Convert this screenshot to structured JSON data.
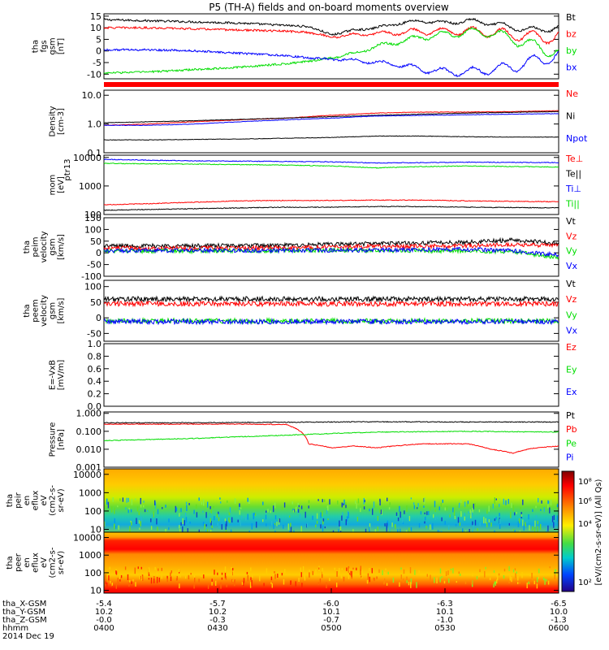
{
  "title": "P5 (TH-A) fields and on-board moments overview",
  "colors": {
    "black": "#000000",
    "red": "#ff0000",
    "green": "#00dd00",
    "blue": "#0000ff"
  },
  "chart_data": [
    {
      "type": "line",
      "panel": "fgs",
      "ylabel_lines": [
        "tha",
        "fgs",
        "gsm",
        "[nT]"
      ],
      "ylim": [
        -12,
        16
      ],
      "yticks": [
        "15",
        "10",
        "5",
        "0",
        "-5",
        "-10"
      ],
      "ytick_values": [
        15,
        10,
        5,
        0,
        -5,
        -10
      ],
      "series": [
        {
          "name": "Bt",
          "color": "#000000",
          "x": [
            0,
            0.1,
            0.2,
            0.3,
            0.4,
            0.45,
            0.5,
            0.55,
            0.6,
            0.65,
            0.7,
            0.75,
            0.8,
            0.85,
            0.9,
            0.95,
            1.0
          ],
          "values": [
            13.5,
            13,
            12.5,
            12,
            11,
            10.5,
            7,
            9,
            10,
            12,
            13,
            12,
            13,
            12,
            10,
            9,
            10
          ]
        },
        {
          "name": "bz",
          "color": "#ff0000",
          "x": [
            0,
            0.1,
            0.2,
            0.3,
            0.4,
            0.45,
            0.5,
            0.55,
            0.6,
            0.65,
            0.7,
            0.75,
            0.8,
            0.85,
            0.9,
            0.95,
            1.0
          ],
          "values": [
            10,
            10,
            9.5,
            9,
            8.5,
            8,
            6,
            7,
            7.5,
            8,
            8.5,
            8.5,
            8.5,
            8,
            7,
            6,
            6
          ]
        },
        {
          "name": "by",
          "color": "#00dd00",
          "x": [
            0,
            0.1,
            0.2,
            0.3,
            0.4,
            0.45,
            0.5,
            0.55,
            0.6,
            0.65,
            0.7,
            0.75,
            0.8,
            0.85,
            0.9,
            0.95,
            1.0
          ],
          "values": [
            -9.5,
            -9,
            -8,
            -7,
            -5.5,
            -4.5,
            -3,
            -1,
            2,
            4,
            6,
            7,
            8,
            8,
            5,
            2,
            -1
          ]
        },
        {
          "name": "bx",
          "color": "#0000ff",
          "x": [
            0,
            0.1,
            0.2,
            0.3,
            0.4,
            0.45,
            0.5,
            0.55,
            0.6,
            0.65,
            0.7,
            0.75,
            0.8,
            0.85,
            0.9,
            0.95,
            1.0
          ],
          "values": [
            0.5,
            0.5,
            0,
            -1,
            -2,
            -3,
            -3.5,
            -4,
            -5,
            -6,
            -8,
            -9,
            -9,
            -8,
            -7,
            -4,
            -2
          ]
        }
      ]
    },
    {
      "type": "line",
      "panel": "density",
      "yscale": "log",
      "ylabel_lines": [
        "Density",
        "[cm-3]"
      ],
      "ylim": [
        0.1,
        15
      ],
      "yticks": [
        "10.0",
        "1.0",
        "0.1"
      ],
      "ytick_values": [
        10,
        1,
        0.1
      ],
      "series": [
        {
          "name": "Ne",
          "color": "#ff0000",
          "x": [
            0,
            0.1,
            0.2,
            0.3,
            0.4,
            0.5,
            0.6,
            0.7,
            0.8,
            0.9,
            1.0
          ],
          "values": [
            0.9,
            1.0,
            1.2,
            1.4,
            1.6,
            2.0,
            2.4,
            2.6,
            2.6,
            2.7,
            2.9
          ]
        },
        {
          "name": "Ni",
          "color": "#000000",
          "x": [
            0,
            0.2,
            0.4,
            0.6,
            0.8,
            1.0
          ],
          "values": [
            1.1,
            1.3,
            1.6,
            2.0,
            2.4,
            2.7
          ]
        },
        {
          "name": "Npot",
          "color": "#0000ff",
          "x": [
            0,
            0.1,
            0.2,
            0.3,
            0.4,
            0.5,
            0.6,
            0.7,
            0.8,
            0.9,
            1.0
          ],
          "values": [
            0.9,
            0.9,
            1.0,
            1.2,
            1.4,
            1.6,
            1.9,
            2.0,
            2.1,
            2.2,
            2.3
          ]
        },
        {
          "name": "",
          "color": "#000000",
          "x": [
            0,
            0.1,
            0.2,
            0.3,
            0.4,
            0.5,
            0.6,
            0.7,
            0.8,
            0.9,
            1.0
          ],
          "values": [
            0.28,
            0.28,
            0.29,
            0.3,
            0.32,
            0.34,
            0.38,
            0.38,
            0.36,
            0.35,
            0.35
          ]
        }
      ]
    },
    {
      "type": "line",
      "panel": "temperature",
      "yscale": "log",
      "ylabel_lines": [
        "mom",
        "[eV]"
      ],
      "ylabel_extra": "ptr13",
      "ylim": [
        100,
        12000
      ],
      "yticks": [
        "10000",
        "1000",
        "100"
      ],
      "ytick_values": [
        10000,
        1000,
        100
      ],
      "series": [
        {
          "name": "Te⊥",
          "color": "#ff0000",
          "x": [
            0,
            0.1,
            0.2,
            0.3,
            0.4,
            0.5,
            0.6,
            0.7,
            0.8,
            0.9,
            1.0
          ],
          "values": [
            220,
            240,
            270,
            300,
            310,
            310,
            320,
            320,
            300,
            290,
            280
          ]
        },
        {
          "name": "Te||",
          "color": "#000000",
          "x": [
            0,
            0.1,
            0.2,
            0.3,
            0.4,
            0.5,
            0.6,
            0.7,
            0.8,
            0.9,
            1.0
          ],
          "values": [
            140,
            150,
            160,
            170,
            180,
            180,
            190,
            190,
            180,
            175,
            170
          ]
        },
        {
          "name": "Ti⊥",
          "color": "#0000ff",
          "x": [
            0,
            0.1,
            0.2,
            0.3,
            0.4,
            0.5,
            0.6,
            0.7,
            0.8,
            0.9,
            1.0
          ],
          "values": [
            8600,
            8000,
            7600,
            7400,
            7200,
            7000,
            6400,
            6600,
            6800,
            6700,
            6600
          ]
        },
        {
          "name": "Ti||",
          "color": "#00dd00",
          "x": [
            0,
            0.1,
            0.2,
            0.3,
            0.4,
            0.5,
            0.6,
            0.7,
            0.8,
            0.9,
            1.0
          ],
          "values": [
            6200,
            6000,
            5800,
            5600,
            5400,
            5000,
            4300,
            4800,
            5000,
            4800,
            4600
          ]
        }
      ]
    },
    {
      "type": "line",
      "panel": "peim-velocity",
      "ylabel_lines": [
        "tha",
        "peim",
        "velocity",
        "gsm",
        "[km/s]"
      ],
      "ylim": [
        -100,
        150
      ],
      "yticks": [
        "150",
        "100",
        "50",
        "0",
        "-50",
        "-100"
      ],
      "ytick_values": [
        150,
        100,
        50,
        0,
        -50,
        -100
      ],
      "series": [
        {
          "name": "Vt",
          "color": "#000000",
          "x": [
            0,
            0.2,
            0.4,
            0.6,
            0.8,
            0.9,
            1.0
          ],
          "values": [
            30,
            30,
            32,
            40,
            45,
            55,
            40
          ]
        },
        {
          "name": "Vz",
          "color": "#ff0000",
          "x": [
            0,
            0.2,
            0.4,
            0.6,
            0.8,
            0.9,
            1.0
          ],
          "values": [
            20,
            20,
            22,
            28,
            30,
            35,
            30
          ]
        },
        {
          "name": "Vy",
          "color": "#00dd00",
          "x": [
            0,
            0.2,
            0.4,
            0.6,
            0.8,
            0.9,
            1.0
          ],
          "values": [
            8,
            8,
            10,
            10,
            8,
            5,
            -20
          ]
        },
        {
          "name": "Vx",
          "color": "#0000ff",
          "x": [
            0,
            0.2,
            0.4,
            0.6,
            0.8,
            0.9,
            1.0
          ],
          "values": [
            10,
            10,
            10,
            12,
            15,
            10,
            -10
          ]
        }
      ]
    },
    {
      "type": "line",
      "panel": "peem-velocity",
      "ylabel_lines": [
        "tha",
        "peem",
        "velocity",
        "gsm",
        "[km/s]"
      ],
      "ylim": [
        -75,
        120
      ],
      "yticks": [
        "100",
        "50",
        "0",
        "-50"
      ],
      "ytick_values": [
        100,
        50,
        0,
        -50
      ],
      "series": [
        {
          "name": "Vt",
          "color": "#000000",
          "x": [
            0,
            0.5,
            1.0
          ],
          "values": [
            60,
            60,
            60
          ]
        },
        {
          "name": "Vz",
          "color": "#ff0000",
          "x": [
            0,
            0.5,
            1.0
          ],
          "values": [
            45,
            45,
            45
          ]
        },
        {
          "name": "Vy",
          "color": "#00dd00",
          "x": [
            0,
            0.5,
            1.0
          ],
          "values": [
            -10,
            -10,
            -10
          ]
        },
        {
          "name": "Vx",
          "color": "#0000ff",
          "x": [
            0,
            0.5,
            1.0
          ],
          "values": [
            -12,
            -12,
            -12
          ]
        }
      ]
    },
    {
      "type": "line",
      "panel": "efield",
      "ylabel_lines": [
        "E=-VxB",
        "[mV/m]"
      ],
      "ylim": [
        0,
        1
      ],
      "yticks": [
        "1.0",
        "0.8",
        "0.6",
        "0.4",
        "0.2",
        "0.0"
      ],
      "ytick_values": [
        1,
        0.8,
        0.6,
        0.4,
        0.2,
        0
      ],
      "series": [
        {
          "name": "Ez",
          "color": "#ff0000",
          "x": [],
          "values": []
        },
        {
          "name": "Ey",
          "color": "#00dd00",
          "x": [],
          "values": []
        },
        {
          "name": "Ex",
          "color": "#0000ff",
          "x": [],
          "values": []
        }
      ]
    },
    {
      "type": "line",
      "panel": "pressure",
      "yscale": "log",
      "ylabel_lines": [
        "Pressure",
        "[nPa]"
      ],
      "ylim": [
        0.001,
        1.2
      ],
      "yticks": [
        "1.000",
        "0.100",
        "0.010",
        "0.001"
      ],
      "ytick_values": [
        1,
        0.1,
        0.01,
        0.001
      ],
      "series": [
        {
          "name": "Pt",
          "color": "#000000",
          "x": [
            0,
            0.2,
            0.4,
            0.6,
            0.8,
            1.0
          ],
          "values": [
            0.3,
            0.3,
            0.32,
            0.34,
            0.33,
            0.33
          ]
        },
        {
          "name": "Pb",
          "color": "#ff0000",
          "x": [
            0,
            0.3,
            0.4,
            0.45,
            0.5,
            0.55,
            0.6,
            0.7,
            0.8,
            0.85,
            0.9,
            0.95,
            1.0
          ],
          "values": [
            0.25,
            0.25,
            0.24,
            0.02,
            0.012,
            0.015,
            0.012,
            0.02,
            0.02,
            0.01,
            0.006,
            0.012,
            0.015
          ]
        },
        {
          "name": "Pe",
          "color": "#00dd00",
          "x": [
            0,
            0.2,
            0.4,
            0.6,
            0.8,
            1.0
          ],
          "values": [
            0.03,
            0.04,
            0.06,
            0.09,
            0.1,
            0.09
          ]
        },
        {
          "name": "Pi",
          "color": "#0000ff",
          "x": [],
          "values": []
        }
      ]
    },
    {
      "type": "heatmap",
      "panel": "peir-eflux",
      "ylabel_lines": [
        "tha",
        "peir",
        "en",
        "eflux",
        "eV",
        "(cm2-s-",
        "sr-eV)"
      ],
      "yscale": "log",
      "ylim": [
        7,
        20000
      ],
      "yticks": [
        "10000",
        "1000",
        "100",
        "10"
      ],
      "ytick_values": [
        10000,
        1000,
        100,
        10
      ]
    },
    {
      "type": "heatmap",
      "panel": "peer-eflux",
      "ylabel_lines": [
        "tha",
        "peer",
        "en",
        "eflux",
        "eV",
        "(cm2-s-",
        "sr-eV)"
      ],
      "yscale": "log",
      "ylim": [
        7,
        20000
      ],
      "yticks": [
        "10000",
        "1000",
        "100",
        "10"
      ],
      "ytick_values": [
        10000,
        1000,
        100,
        10
      ]
    }
  ],
  "colorbar": {
    "label": "[eV/(cm2-s-sr-eV)] (All Qs)",
    "ticks": [
      "10⁸",
      "10⁶",
      "10⁴",
      "10²"
    ]
  },
  "x_axis": {
    "rows": [
      {
        "label": "tha_X-GSM",
        "values": [
          "-5.4",
          "-5.7",
          "-6.0",
          "-6.3",
          "-6.5"
        ]
      },
      {
        "label": "tha_Y-GSM",
        "values": [
          "10.2",
          "10.2",
          "10.1",
          "10.1",
          "10.0"
        ]
      },
      {
        "label": "tha_Z-GSM",
        "values": [
          "-0.0",
          "-0.3",
          "-0.7",
          "-1.0",
          "-1.3"
        ]
      },
      {
        "label": "hhmm",
        "values": [
          "0400",
          "0430",
          "0500",
          "0530",
          "0600"
        ]
      }
    ],
    "date": "2014 Dec 19"
  }
}
